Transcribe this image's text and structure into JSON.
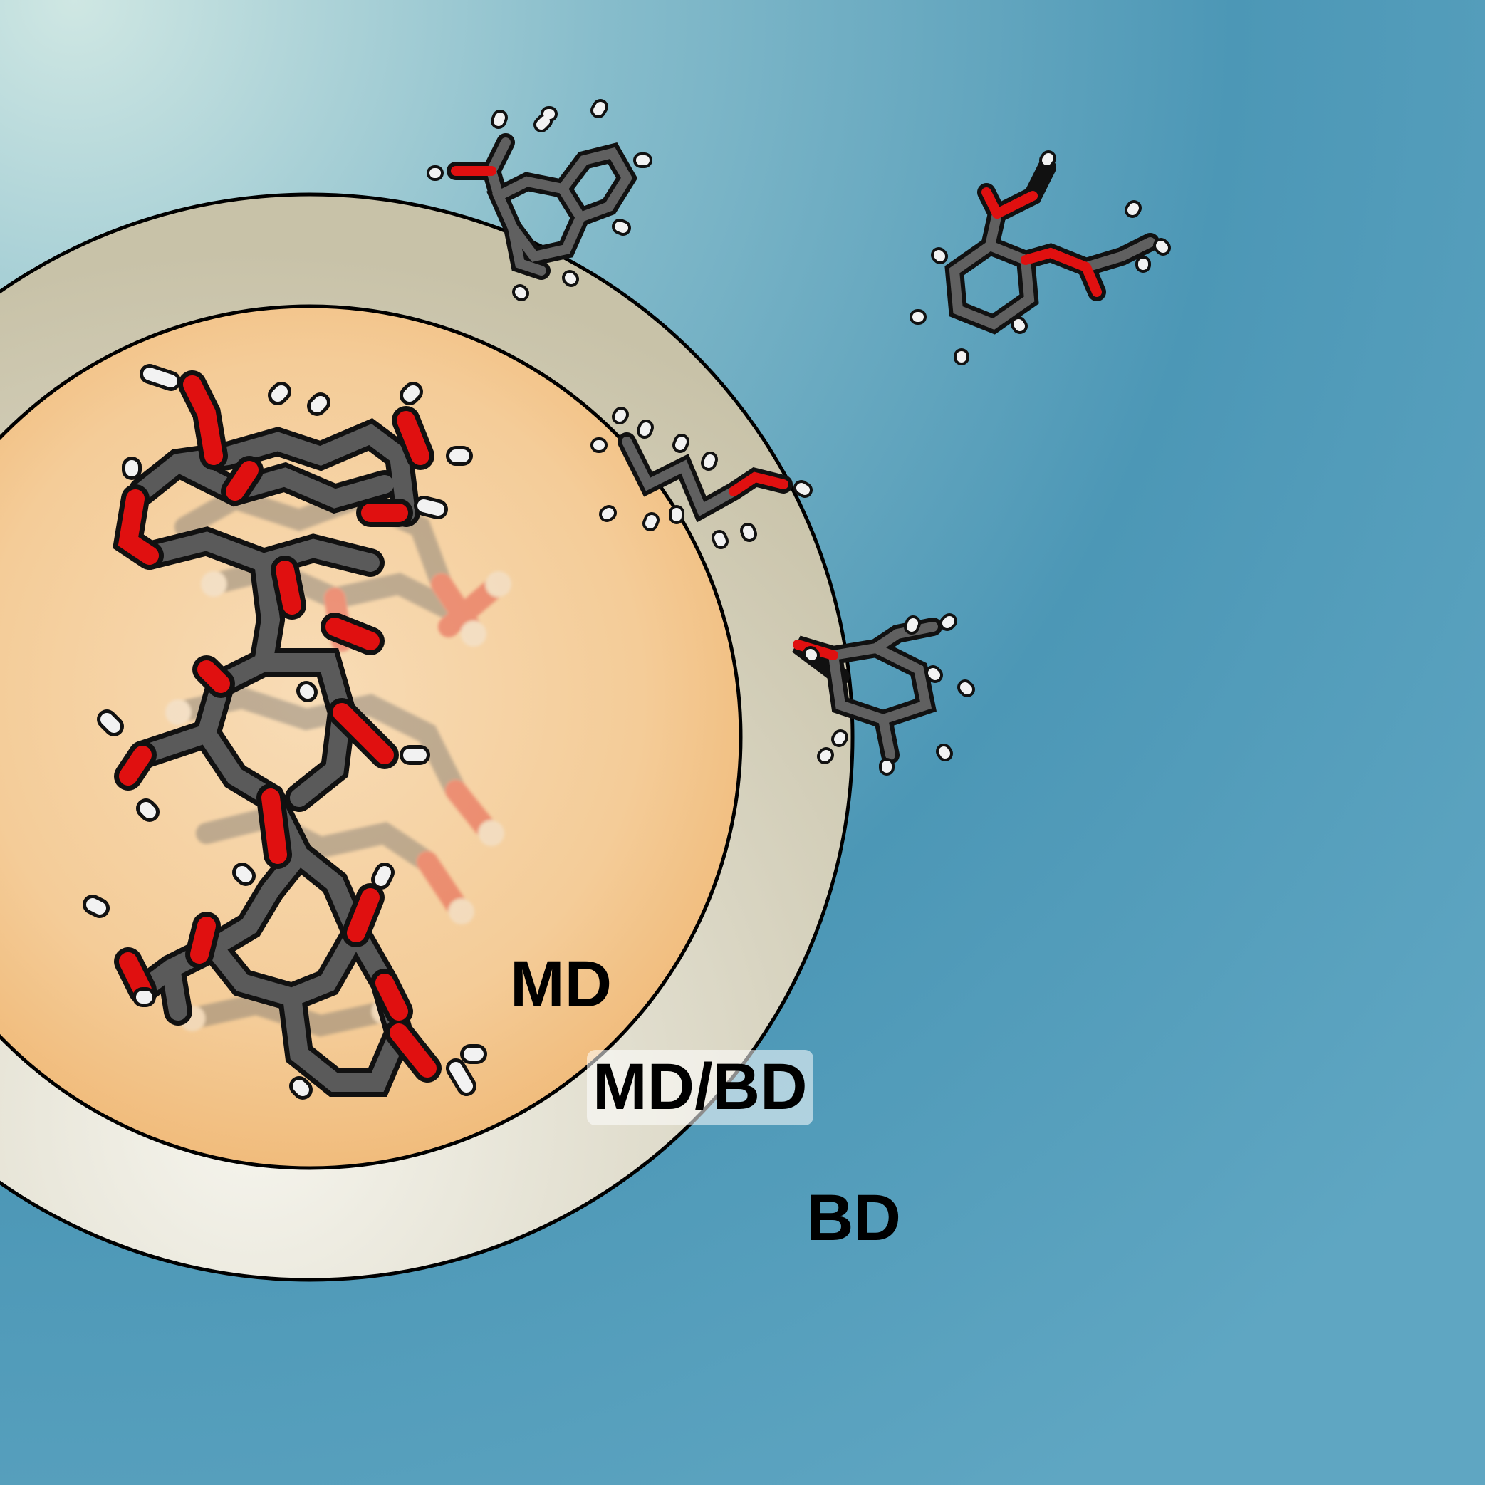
{
  "labels": {
    "md": "MD",
    "md_bd": "MD/BD",
    "bd": "BD"
  },
  "regions": [
    {
      "name": "BD",
      "description_color": "#4a93b3"
    },
    {
      "name": "MD/BD",
      "description_color": "#d8d4c0"
    },
    {
      "name": "MD",
      "description_color": "#f3c48c"
    }
  ],
  "atom_colors": {
    "carbon": "#555555",
    "oxygen": "#e01010",
    "hydrogen": "#f2f2f2"
  },
  "icons": [
    "cyclodextrin-molecule-icon",
    "guest-molecule-icon"
  ]
}
